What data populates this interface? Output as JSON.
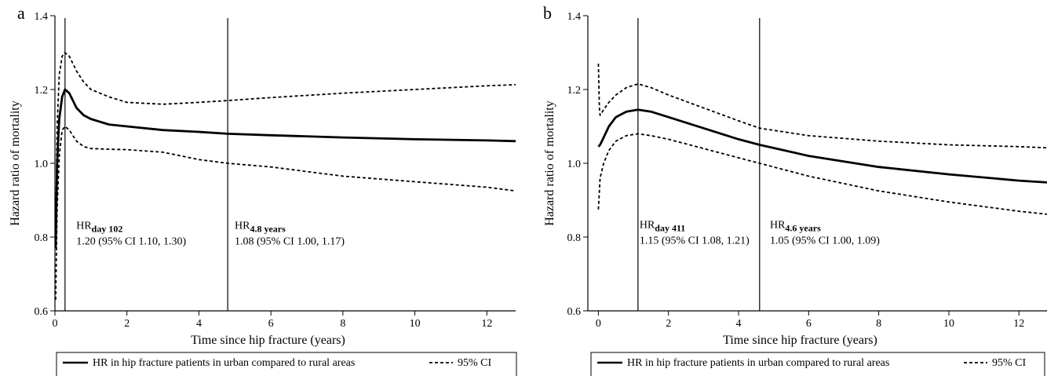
{
  "chart_data": [
    {
      "type": "line",
      "panel_label": "a",
      "xlabel": "Time since hip fracture (years)",
      "ylabel": "Hazard ratio of mortality",
      "xlim": [
        0,
        12.8
      ],
      "ylim": [
        0.6,
        1.4
      ],
      "x_ticks": [
        "0",
        "2",
        "4",
        "6",
        "8",
        "10",
        "12"
      ],
      "y_ticks": [
        "0.6",
        "0.8",
        "1.0",
        "1.2",
        "1.4"
      ],
      "legend_placement": "bottom",
      "grid": false,
      "series": [
        {
          "name": "HR in hip fracture patients in urban compared to rural areas",
          "style": "solid",
          "x": [
            0.02,
            0.06,
            0.12,
            0.2,
            0.28,
            0.4,
            0.6,
            0.8,
            1.0,
            1.5,
            2.0,
            3.0,
            4.0,
            4.8,
            6.0,
            8.0,
            10.0,
            12.0,
            12.8
          ],
          "y": [
            0.77,
            1.0,
            1.12,
            1.18,
            1.2,
            1.19,
            1.15,
            1.13,
            1.12,
            1.105,
            1.1,
            1.09,
            1.085,
            1.08,
            1.076,
            1.07,
            1.065,
            1.062,
            1.06
          ]
        },
        {
          "name": "95% CI",
          "style": "dashed",
          "x": [
            0.02,
            0.06,
            0.12,
            0.2,
            0.28,
            0.4,
            0.6,
            0.8,
            1.0,
            1.5,
            2.0,
            3.0,
            4.0,
            4.8,
            6.0,
            8.0,
            10.0,
            12.0,
            12.8
          ],
          "y": [
            0.81,
            1.1,
            1.24,
            1.29,
            1.3,
            1.29,
            1.25,
            1.22,
            1.2,
            1.18,
            1.165,
            1.16,
            1.165,
            1.17,
            1.178,
            1.19,
            1.2,
            1.21,
            1.213
          ]
        },
        {
          "name": "95% CI",
          "style": "dashed",
          "x": [
            0.02,
            0.06,
            0.12,
            0.2,
            0.28,
            0.4,
            0.6,
            0.8,
            1.0,
            1.5,
            2.0,
            3.0,
            4.0,
            4.8,
            6.0,
            8.0,
            10.0,
            12.0,
            12.8
          ],
          "y": [
            0.63,
            0.88,
            1.02,
            1.09,
            1.1,
            1.09,
            1.06,
            1.045,
            1.04,
            1.038,
            1.037,
            1.03,
            1.01,
            1.0,
            0.99,
            0.965,
            0.95,
            0.935,
            0.925
          ]
        }
      ],
      "vlines": [
        0.28,
        4.8
      ],
      "annotations": [
        {
          "x": 0.55,
          "y": 0.822,
          "hr": "HR",
          "sub": "day 102",
          "line2": "1.20 (95% CI 1.10, 1.30)"
        },
        {
          "x": 4.95,
          "y": 0.822,
          "hr": "HR",
          "sub": "4.8 years",
          "line2": "1.08 (95% CI 1.00, 1.17)"
        }
      ],
      "legend": [
        {
          "label": "HR in hip fracture patients in urban compared to rural areas",
          "style": "solid"
        },
        {
          "label": "95% CI",
          "style": "dashed"
        }
      ]
    },
    {
      "type": "line",
      "panel_label": "b",
      "xlabel": "Time since hip fracture (years)",
      "ylabel": "Hazard ratio of mortality",
      "xlim": [
        -0.3,
        12.8
      ],
      "ylim": [
        0.6,
        1.4
      ],
      "x_ticks": [
        "0",
        "2",
        "4",
        "6",
        "8",
        "10",
        "12"
      ],
      "y_ticks": [
        "0.6",
        "0.8",
        "1.0",
        "1.2",
        "1.4"
      ],
      "legend_placement": "bottom",
      "grid": false,
      "series": [
        {
          "name": "HR in hip fracture patients in urban compared to rural areas",
          "style": "solid",
          "x": [
            0.0,
            0.05,
            0.15,
            0.3,
            0.5,
            0.8,
            1.13,
            1.5,
            2.0,
            3.0,
            4.0,
            4.6,
            6.0,
            8.0,
            10.0,
            12.0,
            12.8
          ],
          "y": [
            1.045,
            1.05,
            1.07,
            1.1,
            1.125,
            1.14,
            1.145,
            1.14,
            1.125,
            1.095,
            1.065,
            1.05,
            1.02,
            0.99,
            0.97,
            0.953,
            0.948
          ]
        },
        {
          "name": "95% CI",
          "style": "dashed",
          "x": [
            0.0,
            0.03,
            0.05,
            0.15,
            0.3,
            0.5,
            0.8,
            1.13,
            1.5,
            2.0,
            3.0,
            4.0,
            4.6,
            6.0,
            8.0,
            10.0,
            12.0,
            12.8
          ],
          "y": [
            1.27,
            1.15,
            1.13,
            1.145,
            1.165,
            1.185,
            1.205,
            1.215,
            1.205,
            1.185,
            1.15,
            1.115,
            1.095,
            1.075,
            1.06,
            1.05,
            1.045,
            1.042
          ]
        },
        {
          "name": "95% CI",
          "style": "dashed",
          "x": [
            0.0,
            0.05,
            0.15,
            0.3,
            0.5,
            0.8,
            1.13,
            1.5,
            2.0,
            3.0,
            4.0,
            4.6,
            6.0,
            8.0,
            10.0,
            12.0,
            12.8
          ],
          "y": [
            0.875,
            0.96,
            1.0,
            1.035,
            1.06,
            1.075,
            1.08,
            1.075,
            1.065,
            1.04,
            1.015,
            1.0,
            0.965,
            0.925,
            0.895,
            0.87,
            0.862
          ]
        }
      ],
      "vlines": [
        1.13,
        4.6
      ],
      "annotations": [
        {
          "x": 1.13,
          "y": 0.825,
          "hr": "HR",
          "sub": "day 411",
          "line2": "1.15 (95% CI 1.08, 1.21)"
        },
        {
          "x": 4.85,
          "y": 0.825,
          "hr": "HR",
          "sub": "4.6 years",
          "line2": "1.05 (95% CI 1.00, 1.09)"
        }
      ],
      "legend": [
        {
          "label": "HR in hip fracture patients in urban compared to rural areas",
          "style": "solid"
        },
        {
          "label": "95% CI",
          "style": "dashed"
        }
      ]
    }
  ]
}
